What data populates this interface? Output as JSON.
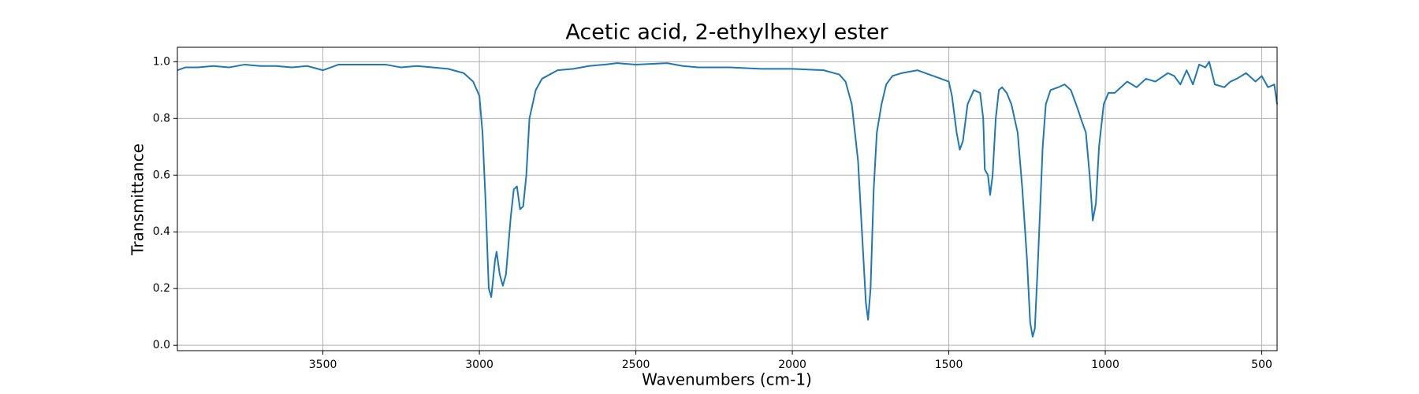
{
  "chart_data": {
    "type": "line",
    "title": "Acetic acid, 2-ethylhexyl ester",
    "xlabel": "Wavenumbers (cm-1)",
    "ylabel": "Transmittance",
    "color": "#1f77b4",
    "grid": true,
    "xlim": [
      3965,
      451
    ],
    "ylim": [
      -0.019,
      1.051
    ],
    "xticks": [
      3500,
      3000,
      2500,
      2000,
      1500,
      1000,
      500
    ],
    "yticks": [
      {
        "value": 0,
        "label": "0.0"
      },
      0.2,
      0.4,
      0.6,
      0.8,
      {
        "value": 1,
        "label": "1.0"
      }
    ],
    "x": [
      3965,
      3940,
      3900,
      3850,
      3800,
      3750,
      3700,
      3650,
      3600,
      3550,
      3500,
      3450,
      3400,
      3350,
      3300,
      3250,
      3200,
      3150,
      3100,
      3050,
      3020,
      3000,
      2990,
      2980,
      2970,
      2962,
      2950,
      2945,
      2935,
      2925,
      2915,
      2900,
      2890,
      2880,
      2870,
      2860,
      2850,
      2840,
      2820,
      2800,
      2750,
      2700,
      2650,
      2600,
      2560,
      2500,
      2400,
      2350,
      2300,
      2200,
      2100,
      2000,
      1900,
      1850,
      1830,
      1810,
      1790,
      1775,
      1765,
      1758,
      1750,
      1740,
      1730,
      1715,
      1700,
      1680,
      1650,
      1600,
      1550,
      1500,
      1490,
      1475,
      1465,
      1455,
      1440,
      1420,
      1400,
      1390,
      1385,
      1375,
      1368,
      1360,
      1350,
      1340,
      1330,
      1315,
      1300,
      1280,
      1265,
      1250,
      1240,
      1232,
      1225,
      1215,
      1200,
      1190,
      1175,
      1150,
      1130,
      1110,
      1090,
      1075,
      1062,
      1050,
      1040,
      1030,
      1020,
      1005,
      990,
      970,
      950,
      930,
      900,
      870,
      840,
      800,
      780,
      760,
      740,
      720,
      700,
      680,
      668,
      650,
      620,
      600,
      580,
      550,
      520,
      500,
      480,
      460,
      451
    ],
    "values": [
      0.97,
      0.98,
      0.98,
      0.985,
      0.98,
      0.99,
      0.985,
      0.985,
      0.98,
      0.985,
      0.97,
      0.99,
      0.99,
      0.99,
      0.99,
      0.98,
      0.985,
      0.98,
      0.975,
      0.96,
      0.93,
      0.88,
      0.75,
      0.5,
      0.2,
      0.17,
      0.3,
      0.33,
      0.25,
      0.21,
      0.25,
      0.45,
      0.55,
      0.56,
      0.48,
      0.49,
      0.6,
      0.8,
      0.9,
      0.94,
      0.97,
      0.975,
      0.985,
      0.99,
      0.995,
      0.99,
      0.995,
      0.985,
      0.98,
      0.98,
      0.975,
      0.975,
      0.97,
      0.955,
      0.93,
      0.85,
      0.65,
      0.35,
      0.15,
      0.09,
      0.2,
      0.55,
      0.75,
      0.85,
      0.92,
      0.95,
      0.96,
      0.97,
      0.95,
      0.93,
      0.88,
      0.75,
      0.69,
      0.72,
      0.85,
      0.9,
      0.89,
      0.8,
      0.62,
      0.6,
      0.53,
      0.6,
      0.8,
      0.9,
      0.91,
      0.89,
      0.85,
      0.75,
      0.55,
      0.3,
      0.08,
      0.03,
      0.06,
      0.3,
      0.7,
      0.85,
      0.9,
      0.91,
      0.92,
      0.9,
      0.84,
      0.79,
      0.75,
      0.6,
      0.44,
      0.5,
      0.7,
      0.85,
      0.89,
      0.89,
      0.91,
      0.93,
      0.91,
      0.94,
      0.93,
      0.96,
      0.95,
      0.92,
      0.97,
      0.92,
      0.99,
      0.98,
      1.0,
      0.92,
      0.91,
      0.93,
      0.94,
      0.96,
      0.93,
      0.95,
      0.91,
      0.92,
      0.85
    ]
  }
}
